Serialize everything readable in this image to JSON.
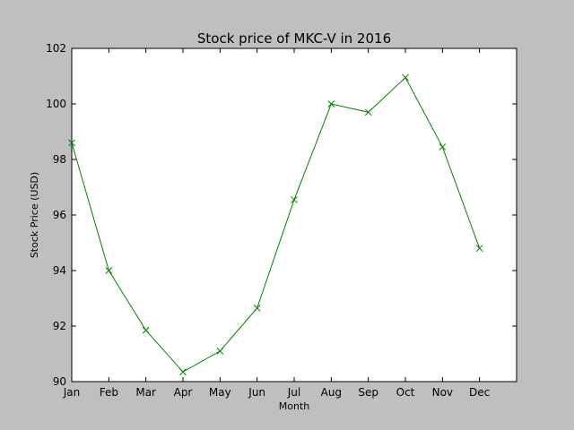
{
  "chart_data": {
    "type": "line",
    "title": "Stock price of MKC-V in 2016",
    "xlabel": "Month",
    "ylabel": "Stock Price (USD)",
    "categories": [
      "Jan",
      "Feb",
      "Mar",
      "Apr",
      "May",
      "Jun",
      "Jul",
      "Aug",
      "Sep",
      "Oct",
      "Nov",
      "Dec"
    ],
    "values": [
      98.6,
      94.0,
      91.85,
      90.35,
      91.1,
      92.65,
      96.55,
      100.0,
      99.7,
      100.95,
      98.45,
      94.8
    ],
    "ylim": [
      90,
      102
    ],
    "yticks": [
      "90",
      "92",
      "94",
      "96",
      "98",
      "100",
      "102"
    ],
    "grid": false,
    "colors": {
      "line": "#008000",
      "marker": "#008000",
      "figure_background": "#bfbfbf",
      "plot_background": "#ffffff"
    },
    "marker": "x"
  }
}
